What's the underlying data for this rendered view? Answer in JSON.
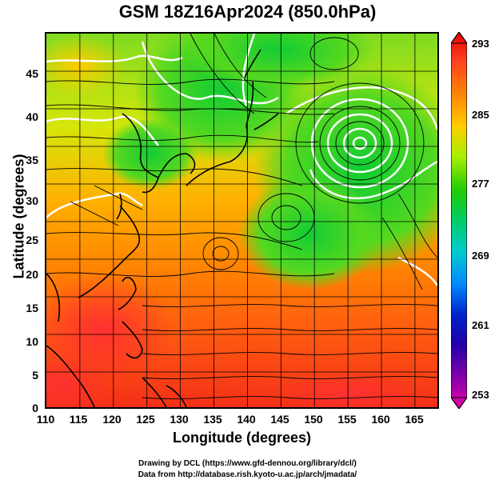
{
  "title": "GSM 18Z16Apr2024 (850.0hPa)",
  "xlabel": "Longitude (degrees)",
  "ylabel": "Latitude  (degrees)",
  "x_ticks": [
    "110",
    "115",
    "120",
    "125",
    "130",
    "135",
    "140",
    "145",
    "150",
    "155",
    "160",
    "165"
  ],
  "y_ticks": [
    "45",
    "40",
    "35",
    "30",
    "25",
    "20",
    "15",
    "10",
    "5",
    "0"
  ],
  "colorbar": {
    "ticks": [
      "293",
      "285",
      "277",
      "269",
      "261",
      "253"
    ],
    "stops": [
      "#e60000",
      "#ff4422",
      "#ff8800",
      "#ffcc00",
      "#aaee00",
      "#22cc00",
      "#00cc66",
      "#00cccc",
      "#0088ff",
      "#0022cc",
      "#2200aa",
      "#8800aa",
      "#ee00aa"
    ]
  },
  "credits": {
    "line1": "Drawing by DCL (https://www.gfd-dennou.org/library/dcl/)",
    "line2": "Data from http://database.rish.kyoto-u.ac.jp/arch/jmadata/"
  }
}
